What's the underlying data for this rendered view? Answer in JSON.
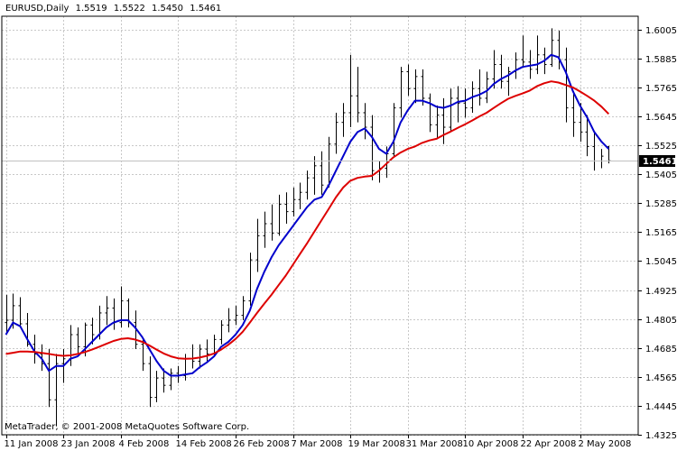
{
  "header": {
    "symbol": "EURUSD,Daily",
    "open": "1.5519",
    "high": "1.5522",
    "low": "1.5450",
    "close": "1.5461"
  },
  "footer": {
    "copyright": "MetaTrader, © 2001-2008 MetaQuotes Software Corp."
  },
  "colors": {
    "bars": "#000000",
    "fast_ma": "#0000cc",
    "slow_ma": "#dd0000",
    "grid": "#c8c8c8",
    "price_tag": "#000000"
  },
  "chart_data": {
    "type": "line",
    "y_axis_side": "right",
    "ylim": [
      1.4325,
      1.606
    ],
    "grid": true,
    "y_ticks": [
      "1.6005",
      "1.5885",
      "1.5765",
      "1.5645",
      "1.5525",
      "1.5405",
      "1.5285",
      "1.5165",
      "1.5045",
      "1.4925",
      "1.4805",
      "1.4685",
      "1.4565",
      "1.4445",
      "1.4325"
    ],
    "x_ticks": [
      {
        "label": "11 Jan 2008",
        "index": 0
      },
      {
        "label": "23 Jan 2008",
        "index": 8
      },
      {
        "label": "4 Feb 2008",
        "index": 16
      },
      {
        "label": "14 Feb 2008",
        "index": 24
      },
      {
        "label": "26 Feb 2008",
        "index": 32
      },
      {
        "label": "7 Mar 2008",
        "index": 40
      },
      {
        "label": "19 Mar 2008",
        "index": 48
      },
      {
        "label": "31 Mar 2008",
        "index": 56
      },
      {
        "label": "10 Apr 2008",
        "index": 64
      },
      {
        "label": "22 Apr 2008",
        "index": 72
      },
      {
        "label": "2 May 2008",
        "index": 80
      }
    ],
    "last_price": "1.5461",
    "ohlc": [
      [
        1.479,
        1.4905,
        1.4745,
        1.48
      ],
      [
        1.48,
        1.491,
        1.4765,
        1.486
      ],
      [
        1.486,
        1.4895,
        1.4775,
        1.4785
      ],
      [
        1.4785,
        1.483,
        1.469,
        1.47
      ],
      [
        1.47,
        1.474,
        1.462,
        1.466
      ],
      [
        1.466,
        1.47,
        1.459,
        1.462
      ],
      [
        1.462,
        1.468,
        1.444,
        1.447
      ],
      [
        1.447,
        1.466,
        1.436,
        1.462
      ],
      [
        1.462,
        1.468,
        1.454,
        1.464
      ],
      [
        1.464,
        1.478,
        1.461,
        1.474
      ],
      [
        1.474,
        1.477,
        1.466,
        1.469
      ],
      [
        1.469,
        1.479,
        1.465,
        1.478
      ],
      [
        1.478,
        1.481,
        1.47,
        1.474
      ],
      [
        1.474,
        1.486,
        1.472,
        1.483
      ],
      [
        1.483,
        1.49,
        1.478,
        1.485
      ],
      [
        1.485,
        1.489,
        1.476,
        1.479
      ],
      [
        1.479,
        1.494,
        1.477,
        1.488
      ],
      [
        1.488,
        1.489,
        1.477,
        1.479
      ],
      [
        1.479,
        1.484,
        1.468,
        1.47
      ],
      [
        1.47,
        1.472,
        1.459,
        1.462
      ],
      [
        1.462,
        1.465,
        1.444,
        1.448
      ],
      [
        1.448,
        1.459,
        1.446,
        1.456
      ],
      [
        1.456,
        1.46,
        1.45,
        1.453
      ],
      [
        1.453,
        1.46,
        1.451,
        1.458
      ],
      [
        1.458,
        1.461,
        1.454,
        1.457
      ],
      [
        1.457,
        1.466,
        1.455,
        1.464
      ],
      [
        1.464,
        1.47,
        1.46,
        1.463
      ],
      [
        1.463,
        1.47,
        1.46,
        1.468
      ],
      [
        1.468,
        1.472,
        1.463,
        1.466
      ],
      [
        1.466,
        1.474,
        1.465,
        1.472
      ],
      [
        1.472,
        1.48,
        1.47,
        1.478
      ],
      [
        1.478,
        1.485,
        1.475,
        1.48
      ],
      [
        1.48,
        1.486,
        1.478,
        1.482
      ],
      [
        1.482,
        1.49,
        1.48,
        1.488
      ],
      [
        1.488,
        1.508,
        1.486,
        1.505
      ],
      [
        1.505,
        1.522,
        1.5,
        1.515
      ],
      [
        1.515,
        1.525,
        1.51,
        1.52
      ],
      [
        1.52,
        1.528,
        1.513,
        1.516
      ],
      [
        1.516,
        1.532,
        1.515,
        1.528
      ],
      [
        1.528,
        1.533,
        1.52,
        1.525
      ],
      [
        1.525,
        1.535,
        1.523,
        1.53
      ],
      [
        1.53,
        1.537,
        1.526,
        1.533
      ],
      [
        1.533,
        1.542,
        1.53,
        1.539
      ],
      [
        1.539,
        1.548,
        1.532,
        1.544
      ],
      [
        1.544,
        1.55,
        1.532,
        1.536
      ],
      [
        1.536,
        1.556,
        1.535,
        1.553
      ],
      [
        1.553,
        1.566,
        1.549,
        1.562
      ],
      [
        1.562,
        1.57,
        1.556,
        1.566
      ],
      [
        1.566,
        1.59,
        1.56,
        1.573
      ],
      [
        1.573,
        1.585,
        1.562,
        1.566
      ],
      [
        1.566,
        1.57,
        1.555,
        1.56
      ],
      [
        1.56,
        1.565,
        1.538,
        1.542
      ],
      [
        1.542,
        1.546,
        1.537,
        1.543
      ],
      [
        1.543,
        1.552,
        1.539,
        1.549
      ],
      [
        1.549,
        1.57,
        1.548,
        1.568
      ],
      [
        1.568,
        1.585,
        1.564,
        1.583
      ],
      [
        1.583,
        1.586,
        1.573,
        1.576
      ],
      [
        1.576,
        1.584,
        1.57,
        1.581
      ],
      [
        1.581,
        1.584,
        1.569,
        1.572
      ],
      [
        1.572,
        1.574,
        1.558,
        1.561
      ],
      [
        1.561,
        1.569,
        1.555,
        1.565
      ],
      [
        1.565,
        1.572,
        1.553,
        1.56
      ],
      [
        1.56,
        1.576,
        1.558,
        1.572
      ],
      [
        1.572,
        1.577,
        1.562,
        1.57
      ],
      [
        1.57,
        1.576,
        1.564,
        1.568
      ],
      [
        1.568,
        1.579,
        1.566,
        1.576
      ],
      [
        1.576,
        1.584,
        1.569,
        1.572
      ],
      [
        1.572,
        1.583,
        1.57,
        1.58
      ],
      [
        1.58,
        1.592,
        1.576,
        1.586
      ],
      [
        1.586,
        1.59,
        1.576,
        1.579
      ],
      [
        1.579,
        1.585,
        1.573,
        1.583
      ],
      [
        1.583,
        1.591,
        1.58,
        1.588
      ],
      [
        1.588,
        1.598,
        1.585,
        1.587
      ],
      [
        1.587,
        1.592,
        1.58,
        1.584
      ],
      [
        1.584,
        1.598,
        1.582,
        1.59
      ],
      [
        1.59,
        1.593,
        1.582,
        1.586
      ],
      [
        1.586,
        1.601,
        1.585,
        1.596
      ],
      [
        1.596,
        1.6,
        1.584,
        1.588
      ],
      [
        1.588,
        1.593,
        1.562,
        1.568
      ],
      [
        1.568,
        1.575,
        1.556,
        1.562
      ],
      [
        1.562,
        1.57,
        1.554,
        1.558
      ],
      [
        1.558,
        1.565,
        1.548,
        1.552
      ],
      [
        1.552,
        1.558,
        1.542,
        1.546
      ],
      [
        1.546,
        1.551,
        1.543,
        1.548
      ],
      [
        1.5519,
        1.5522,
        1.545,
        1.5461
      ]
    ],
    "series": [
      {
        "color": "#0000cc",
        "values": [
          1.474,
          1.479,
          1.4775,
          1.472,
          1.467,
          1.464,
          1.459,
          1.461,
          1.461,
          1.464,
          1.465,
          1.468,
          1.471,
          1.474,
          1.477,
          1.479,
          1.48,
          1.48,
          1.477,
          1.473,
          1.468,
          1.463,
          1.459,
          1.457,
          1.457,
          1.4575,
          1.458,
          1.4605,
          1.4625,
          1.465,
          1.469,
          1.471,
          1.474,
          1.478,
          1.484,
          1.493,
          1.5,
          1.506,
          1.511,
          1.515,
          1.519,
          1.523,
          1.527,
          1.53,
          1.531,
          1.536,
          1.542,
          1.548,
          1.554,
          1.558,
          1.5595,
          1.556,
          1.551,
          1.549,
          1.554,
          1.562,
          1.567,
          1.571,
          1.571,
          1.57,
          1.5685,
          1.568,
          1.569,
          1.5705,
          1.571,
          1.5725,
          1.5735,
          1.575,
          1.578,
          1.58,
          1.5815,
          1.5835,
          1.585,
          1.5855,
          1.586,
          1.5875,
          1.59,
          1.589,
          1.583,
          1.575,
          1.569,
          1.564,
          1.558,
          1.554,
          1.551
        ]
      },
      {
        "color": "#dd0000",
        "values": [
          1.466,
          1.4665,
          1.467,
          1.467,
          1.4668,
          1.4664,
          1.466,
          1.4655,
          1.4652,
          1.4654,
          1.466,
          1.4668,
          1.4678,
          1.469,
          1.4702,
          1.4714,
          1.4722,
          1.4725,
          1.472,
          1.471,
          1.4695,
          1.4678,
          1.4662,
          1.465,
          1.4642,
          1.464,
          1.4641,
          1.4645,
          1.4652,
          1.4662,
          1.4678,
          1.4698,
          1.4722,
          1.4752,
          1.479,
          1.483,
          1.4868,
          1.4905,
          1.4945,
          1.4985,
          1.503,
          1.5075,
          1.512,
          1.5168,
          1.5215,
          1.5262,
          1.531,
          1.535,
          1.5378,
          1.539,
          1.5395,
          1.5398,
          1.542,
          1.5448,
          1.5475,
          1.5495,
          1.551,
          1.552,
          1.5535,
          1.5545,
          1.5552,
          1.5568,
          1.5582,
          1.5598,
          1.5612,
          1.5628,
          1.5645,
          1.566,
          1.568,
          1.57,
          1.5718,
          1.573,
          1.574,
          1.5752,
          1.577,
          1.5782,
          1.579,
          1.5785,
          1.5775,
          1.5765,
          1.5748,
          1.573,
          1.571,
          1.5685,
          1.5655
        ]
      }
    ]
  }
}
